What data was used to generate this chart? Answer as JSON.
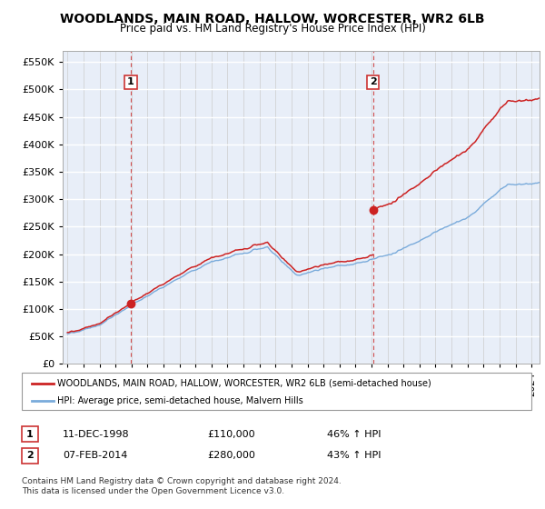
{
  "title": "WOODLANDS, MAIN ROAD, HALLOW, WORCESTER, WR2 6LB",
  "subtitle": "Price paid vs. HM Land Registry's House Price Index (HPI)",
  "legend_line1": "WOODLANDS, MAIN ROAD, HALLOW, WORCESTER, WR2 6LB (semi-detached house)",
  "legend_line2": "HPI: Average price, semi-detached house, Malvern Hills",
  "sale1_date_str": "11-DEC-1998",
  "sale1_x": 1998.95,
  "sale1_price": 110000,
  "sale1_pct": "46% ↑ HPI",
  "sale2_date_str": "07-FEB-2014",
  "sale2_x": 2014.1,
  "sale2_price": 280000,
  "sale2_pct": "43% ↑ HPI",
  "ylim": [
    0,
    570000
  ],
  "xlim": [
    1994.7,
    2024.5
  ],
  "hpi_color": "#7aabdb",
  "price_color": "#cc2222",
  "vline_color": "#cc3333",
  "background_color": "#e8eef8",
  "footnote": "Contains HM Land Registry data © Crown copyright and database right 2024.\nThis data is licensed under the Open Government Licence v3.0."
}
